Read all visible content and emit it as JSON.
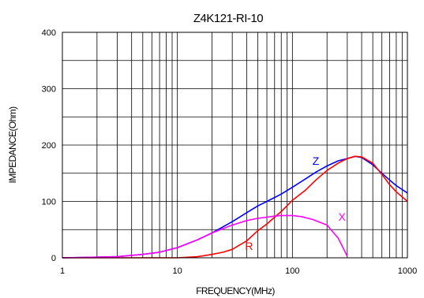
{
  "chart_data": {
    "type": "line",
    "title": "Z4K121-RI-10",
    "xlabel": "FREQUENCY(MHz)",
    "ylabel": "IMPEDANCE(Ohm)",
    "xscale": "log",
    "xlim": [
      1,
      1000
    ],
    "ylim": [
      0,
      400
    ],
    "x_ticks": [
      1,
      10,
      100,
      1000
    ],
    "x_tick_labels": [
      "1",
      "10",
      "100",
      "1000"
    ],
    "y_ticks": [
      0,
      100,
      200,
      300,
      400
    ],
    "y_tick_labels": [
      "0",
      "100",
      "200",
      "300",
      "400"
    ],
    "grid": true,
    "legend": "inline labels on curves",
    "series": [
      {
        "name": "Z",
        "color": "#0000ff",
        "x": [
          1,
          3,
          5,
          7,
          10,
          15,
          20,
          30,
          40,
          50,
          60,
          70,
          80,
          100,
          130,
          160,
          200,
          250,
          300,
          350,
          400,
          500,
          600,
          700,
          800,
          1000
        ],
        "y": [
          0,
          2,
          6,
          10,
          18,
          32,
          44,
          64,
          80,
          92,
          100,
          107,
          113,
          125,
          140,
          152,
          163,
          172,
          176,
          180,
          178,
          165,
          150,
          138,
          128,
          115
        ]
      },
      {
        "name": "R",
        "color": "#ff0000",
        "x": [
          1,
          5,
          10,
          15,
          20,
          25,
          30,
          40,
          50,
          60,
          70,
          80,
          100,
          130,
          160,
          200,
          250,
          300,
          350,
          400,
          500,
          600,
          700,
          800,
          1000
        ],
        "y": [
          0,
          0,
          0,
          2,
          6,
          10,
          15,
          30,
          48,
          60,
          72,
          82,
          102,
          120,
          138,
          155,
          168,
          176,
          180,
          179,
          168,
          148,
          130,
          117,
          100
        ]
      },
      {
        "name": "X",
        "color": "#ff00ff",
        "x": [
          1,
          3,
          5,
          7,
          10,
          15,
          20,
          30,
          40,
          50,
          60,
          70,
          80,
          90,
          100,
          120,
          150,
          200,
          250,
          280,
          300
        ],
        "y": [
          0,
          2,
          6,
          10,
          18,
          32,
          44,
          58,
          66,
          70,
          72,
          74,
          75,
          75,
          75,
          73,
          68,
          58,
          35,
          15,
          3
        ]
      }
    ],
    "series_labels": [
      {
        "text": "Z",
        "color": "#0000ff",
        "x": 160,
        "y": 165
      },
      {
        "text": "R",
        "color": "#ff0000",
        "x": 42,
        "y": 14
      },
      {
        "text": "X",
        "color": "#ff00ff",
        "x": 270,
        "y": 66
      }
    ]
  }
}
